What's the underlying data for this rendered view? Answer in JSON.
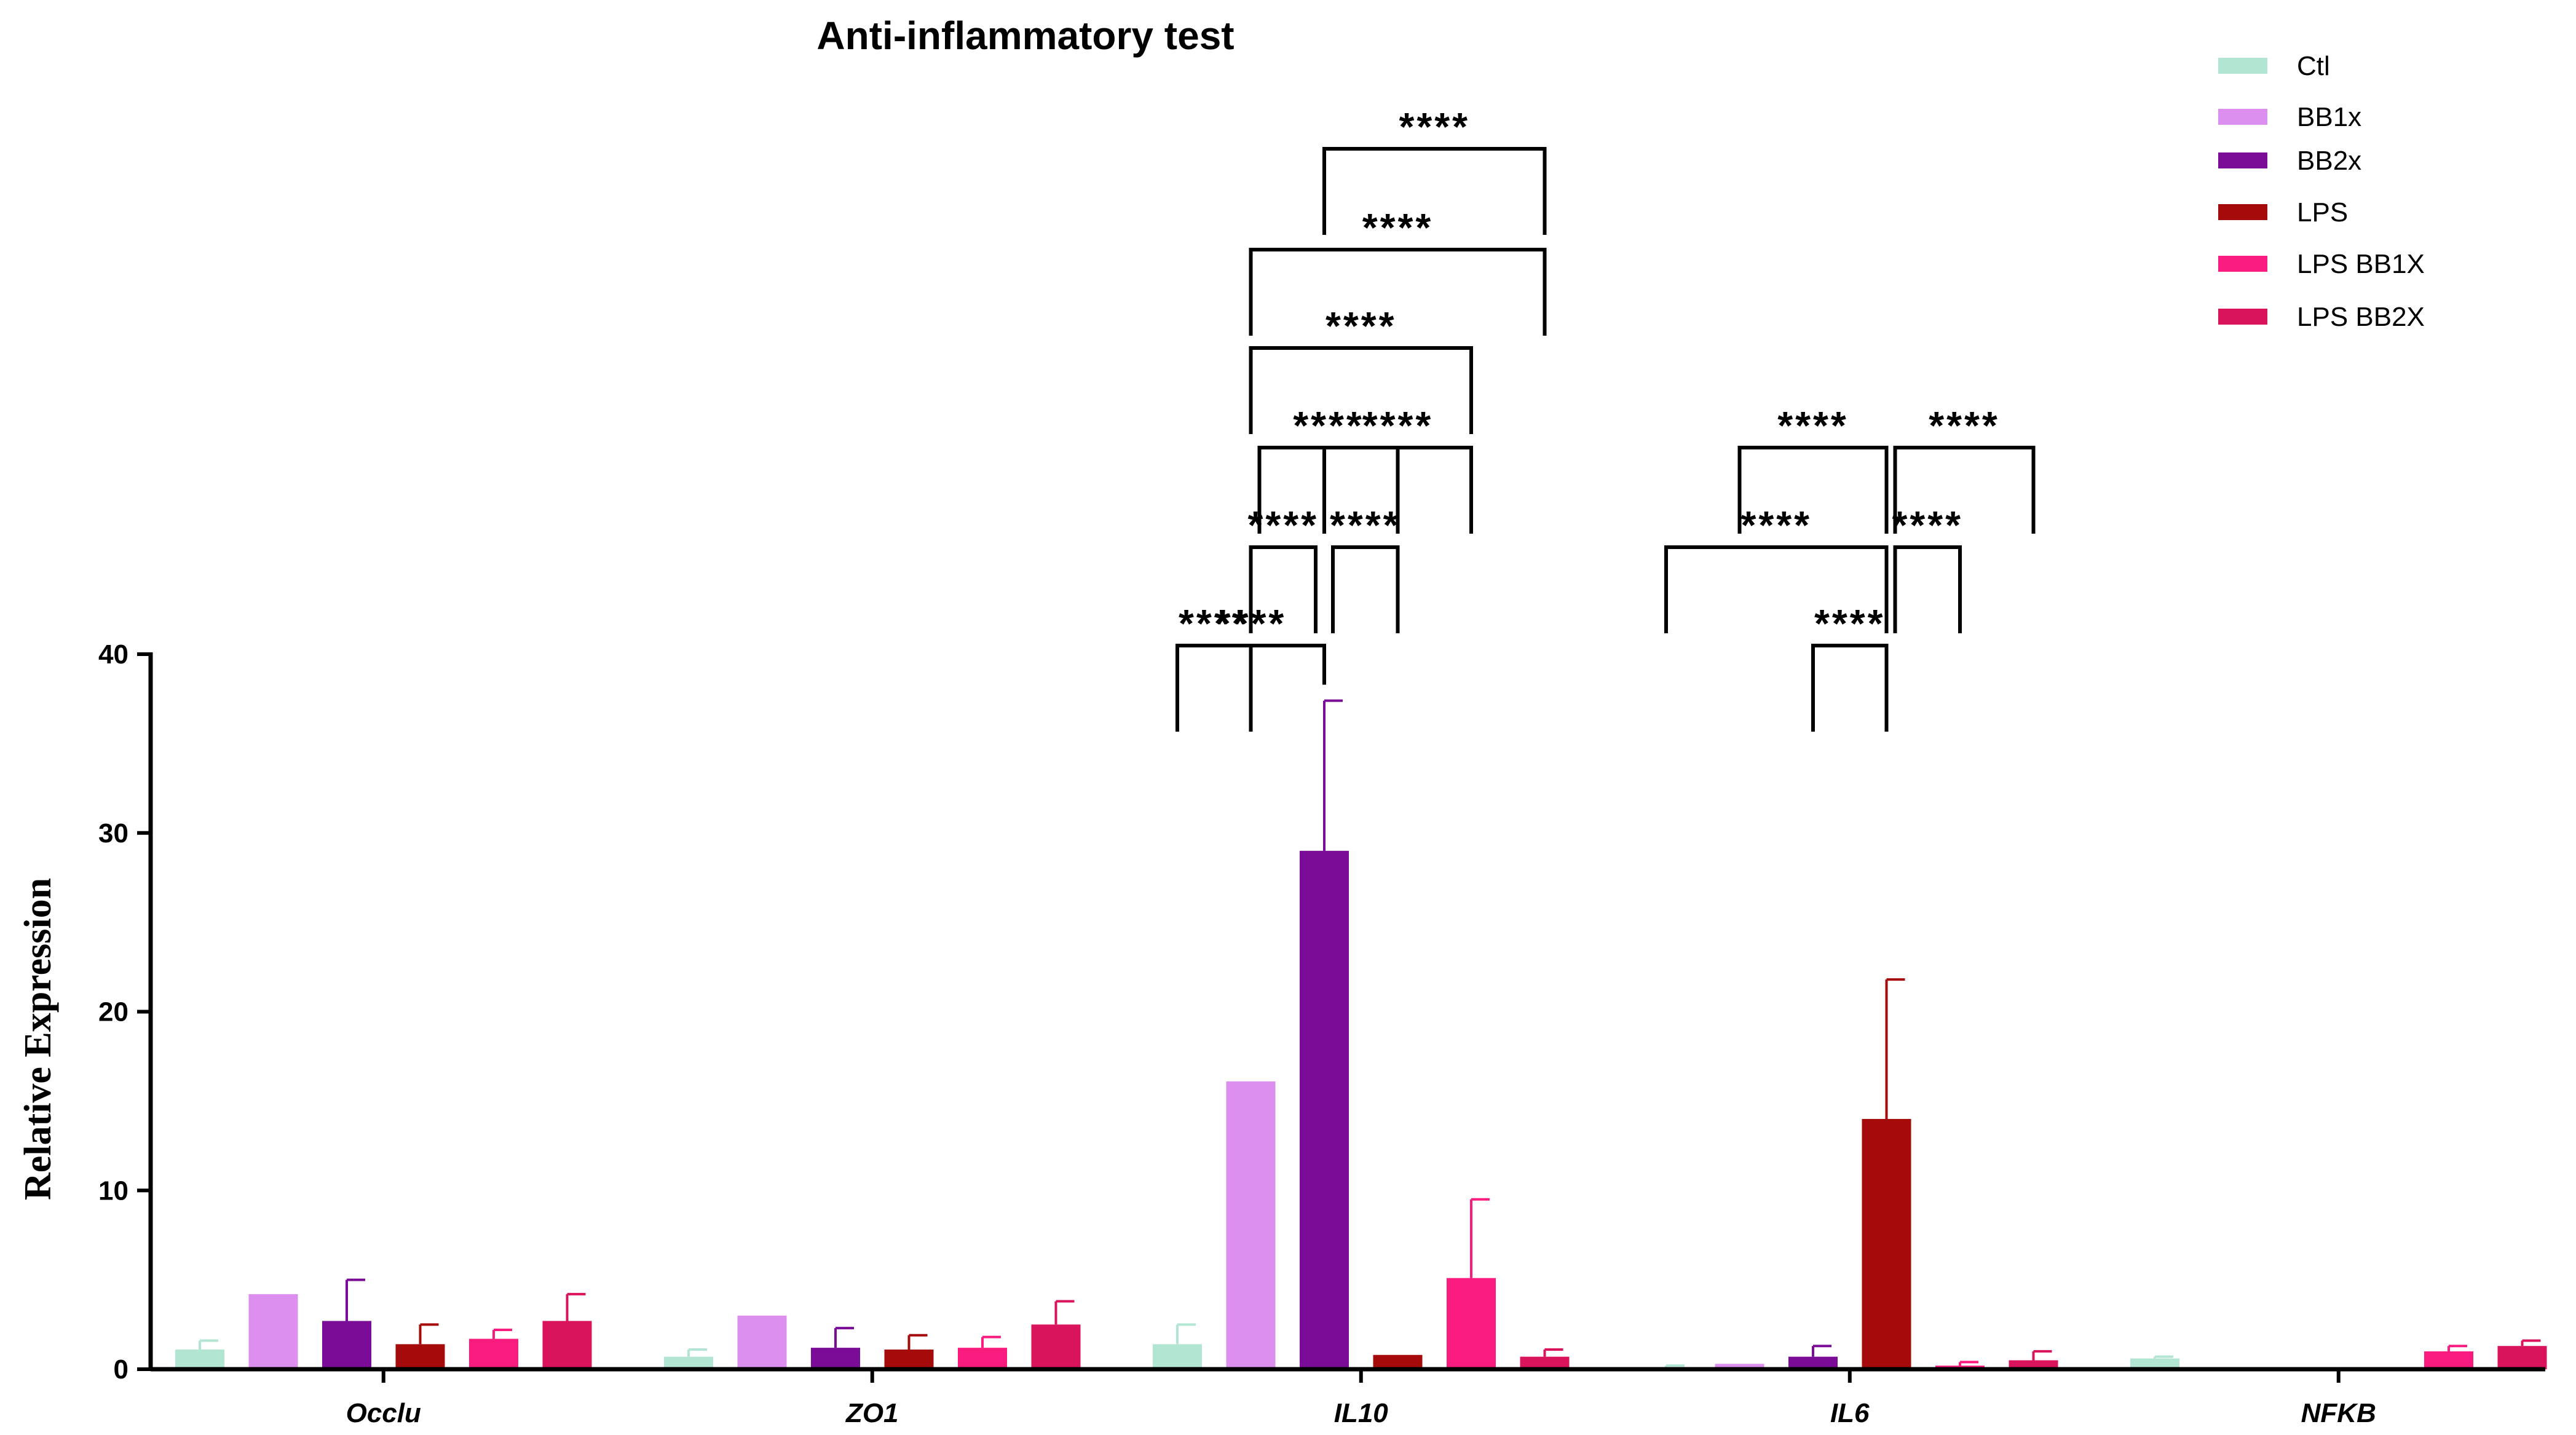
{
  "chart_data": {
    "type": "bar",
    "title": "Anti-inflammatory test",
    "xlabel": "",
    "ylabel": "Relative Expression",
    "ylim": [
      0,
      40
    ],
    "yticks": [
      0,
      10,
      20,
      30,
      40
    ],
    "legend_position": "top-right",
    "categories": [
      "Occlu",
      "ZO1",
      "IL10",
      "IL6",
      "NFKB"
    ],
    "series": [
      {
        "name": "Ctl",
        "color": "#b3e6d2",
        "values": [
          1.1,
          0.7,
          1.4,
          0.1,
          0.6
        ],
        "errors": [
          0.5,
          0.4,
          1.1,
          0.1,
          0.1
        ]
      },
      {
        "name": "BB1x",
        "color": "#dd8ff0",
        "values": [
          4.2,
          3.0,
          16.1,
          0.3,
          0.0
        ],
        "errors": [
          0.0,
          0.0,
          0.0,
          0.0,
          0.0
        ]
      },
      {
        "name": "BB2x",
        "color": "#7b0c98",
        "values": [
          2.7,
          1.2,
          29.0,
          0.7,
          0.1
        ],
        "errors": [
          2.3,
          1.1,
          8.4,
          0.6,
          0.0
        ]
      },
      {
        "name": "LPS",
        "color": "#a60b0b",
        "values": [
          1.4,
          1.1,
          0.8,
          14.0,
          0.0
        ],
        "errors": [
          1.1,
          0.8,
          0.0,
          7.8,
          0.0
        ]
      },
      {
        "name": "LPS BB1X",
        "color": "#f91b7d",
        "values": [
          1.7,
          1.2,
          5.1,
          0.2,
          1.0
        ],
        "errors": [
          0.5,
          0.6,
          4.4,
          0.2,
          0.3
        ]
      },
      {
        "name": "LPS BB2X",
        "color": "#d9135c",
        "values": [
          2.7,
          2.5,
          0.7,
          0.5,
          1.3
        ],
        "errors": [
          1.5,
          1.3,
          0.4,
          0.5,
          0.3
        ]
      }
    ],
    "significance": [
      {
        "category": "IL10",
        "from": "Ctl",
        "to": "BB1x",
        "label": "****"
      },
      {
        "category": "IL10",
        "from": "Ctl",
        "to": "BB2x",
        "label": "****"
      },
      {
        "category": "IL10",
        "from": "BB1x",
        "to": "BB2x",
        "label": "****"
      },
      {
        "category": "IL10",
        "from": "BB1x",
        "to": "LPS",
        "label": "****"
      },
      {
        "category": "IL10",
        "from": "BB1x",
        "to": "LPS BB1X",
        "label": "****"
      },
      {
        "category": "IL10",
        "from": "BB1x",
        "to": "LPS BB2X",
        "label": "****"
      },
      {
        "category": "IL10",
        "from": "BB2x",
        "to": "LPS",
        "label": "****"
      },
      {
        "category": "IL10",
        "from": "BB2x",
        "to": "LPS BB1X",
        "label": "****"
      },
      {
        "category": "IL10",
        "from": "BB2x",
        "to": "LPS BB2X",
        "label": "****"
      },
      {
        "category": "IL6",
        "from": "BB2x",
        "to": "LPS",
        "label": "****"
      },
      {
        "category": "IL6",
        "from": "Ctl",
        "to": "LPS",
        "label": "****"
      },
      {
        "category": "IL6",
        "from": "LPS",
        "to": "LPS BB1X",
        "label": "****"
      },
      {
        "category": "IL6",
        "from": "BB1x",
        "to": "LPS",
        "label": "****"
      },
      {
        "category": "IL6",
        "from": "LPS",
        "to": "LPS BB2X",
        "label": "****"
      }
    ]
  }
}
